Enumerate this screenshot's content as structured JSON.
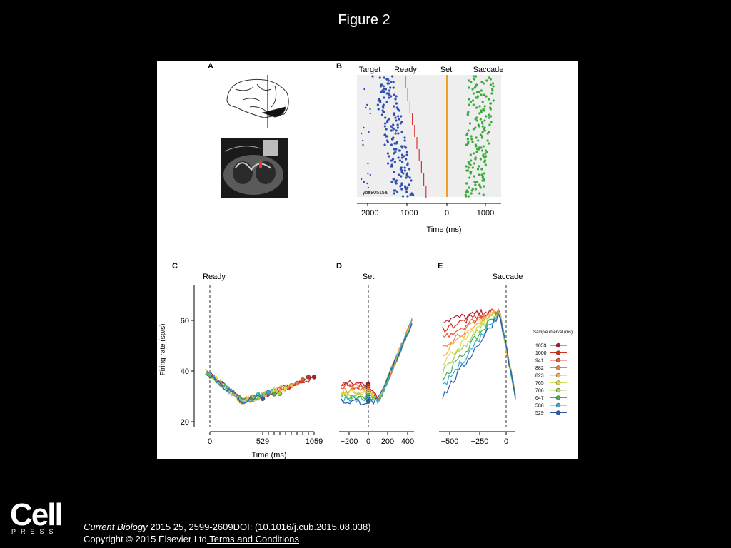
{
  "title": "Figure 2",
  "panels": {
    "A": {
      "label": "A"
    },
    "B": {
      "label": "B",
      "events": [
        "Target",
        "Ready",
        "Set",
        "Saccade"
      ],
      "unit_id": "yo080515a",
      "xticks": [
        "−2000",
        "−1000",
        "0",
        "1000"
      ],
      "xlabel": "Time (ms)"
    },
    "C": {
      "label": "C",
      "event": "Ready",
      "ylabel": "Firing rate (sp/s)",
      "yticks": [
        "60",
        "40",
        "20"
      ],
      "xticks": [
        "0",
        "529",
        "1059"
      ],
      "xlabel": "Time (ms)"
    },
    "D": {
      "label": "D",
      "event": "Set",
      "xticks": [
        "−200",
        "0",
        "200",
        "400"
      ]
    },
    "E": {
      "label": "E",
      "event": "Saccade",
      "xticks": [
        "−500",
        "−250",
        "0"
      ]
    }
  },
  "legend": {
    "title": "Sample interval (ms)",
    "entries": [
      {
        "label": "1059",
        "color": "#b2182b"
      },
      {
        "label": "1000",
        "color": "#d7301f"
      },
      {
        "label": "941",
        "color": "#e8553a"
      },
      {
        "label": "882",
        "color": "#f08040"
      },
      {
        "label": "823",
        "color": "#f5b041"
      },
      {
        "label": "765",
        "color": "#d9e04a"
      },
      {
        "label": "706",
        "color": "#9fd34a"
      },
      {
        "label": "647",
        "color": "#3fb34f"
      },
      {
        "label": "588",
        "color": "#34a9d9"
      },
      {
        "label": "529",
        "color": "#2a5db0"
      }
    ]
  },
  "footer": {
    "logo": "Cell",
    "logo_sub": "PRESS",
    "journal": "Current Biology",
    "citation": " 2015 25, 2599-2609DOI: (10.1016/j.cub.2015.08.038)",
    "copyright": "Copyright © 2015 Elsevier Ltd",
    "link": " Terms and Conditions"
  }
}
